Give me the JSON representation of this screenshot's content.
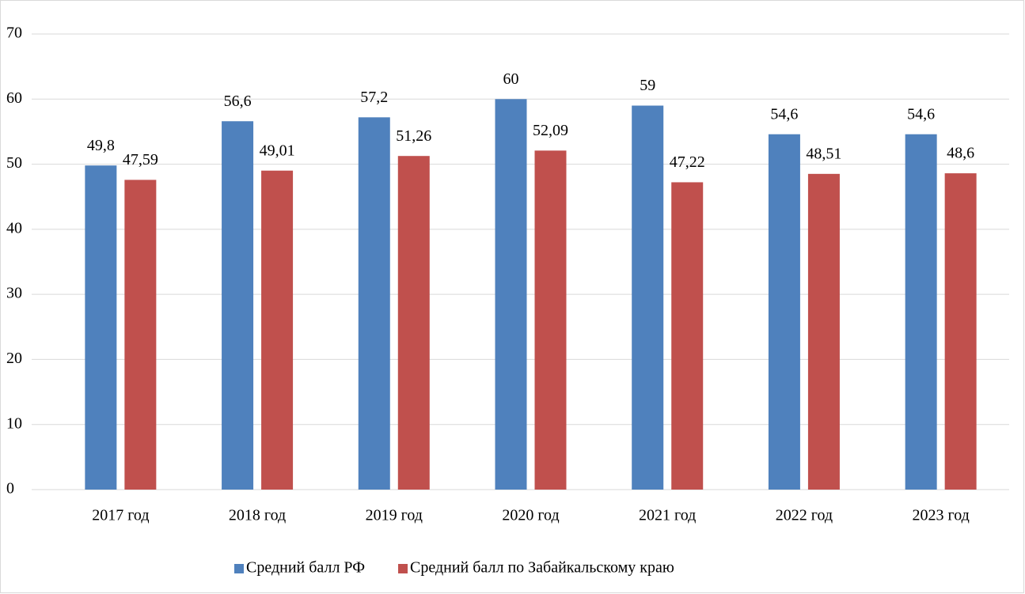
{
  "chart_data": {
    "type": "bar",
    "categories": [
      "2017 год",
      "2018 год",
      "2019 год",
      "2020 год",
      "2021 год",
      "2022 год",
      "2023 год"
    ],
    "series": [
      {
        "name": "Средний балл РФ",
        "color": "#4f81bd",
        "values": [
          49.8,
          56.6,
          57.2,
          60,
          59,
          54.6,
          54.6
        ],
        "value_labels": [
          "49,8",
          "56,6",
          "57,2",
          "60",
          "59",
          "54,6",
          "54,6"
        ]
      },
      {
        "name": "Средний балл по Забайкальскому краю",
        "color": "#c0504d",
        "values": [
          47.59,
          49.01,
          51.26,
          52.09,
          47.22,
          48.51,
          48.6
        ],
        "value_labels": [
          "47,59",
          "49,01",
          "51,26",
          "52,09",
          "47,22",
          "48,51",
          "48,6"
        ]
      }
    ],
    "ylim": [
      0,
      70
    ],
    "yticks": [
      0,
      10,
      20,
      30,
      40,
      50,
      60,
      70
    ],
    "grid": true,
    "legend": "bottom"
  }
}
